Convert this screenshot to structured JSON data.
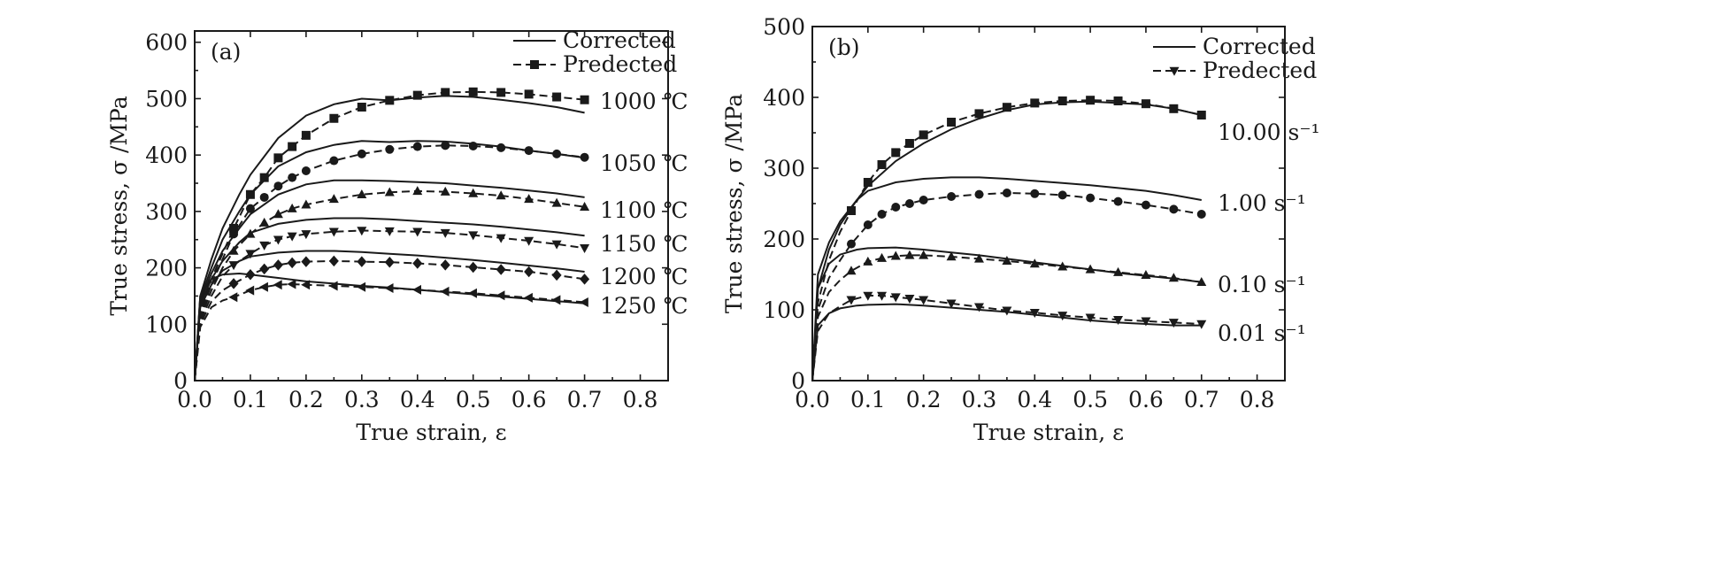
{
  "chart_data": [
    {
      "type": "line",
      "panel_label": "(a)",
      "xlabel": "True strain, ε",
      "ylabel": "True stress, σ /MPa",
      "xlim": [
        0.0,
        0.85
      ],
      "ylim": [
        0,
        620
      ],
      "xticks": [
        "0.0",
        "0.1",
        "0.2",
        "0.3",
        "0.4",
        "0.5",
        "0.6",
        "0.7",
        "0.8"
      ],
      "yticks": [
        "0",
        "100",
        "200",
        "300",
        "400",
        "500",
        "600"
      ],
      "legend": {
        "placement": "top-right",
        "entries": [
          "Corrected",
          "Predected"
        ]
      },
      "marker_shapes": [
        "square",
        "circle",
        "triangle-up",
        "triangle-down",
        "diamond",
        "triangle-left"
      ],
      "series": [
        {
          "name": "1000 ℃",
          "corrected": {
            "x": [
              0,
              0.01,
              0.03,
              0.05,
              0.08,
              0.1,
              0.15,
              0.2,
              0.25,
              0.3,
              0.35,
              0.4,
              0.45,
              0.5,
              0.55,
              0.6,
              0.65,
              0.7
            ],
            "y": [
              0,
              150,
              215,
              270,
              330,
              365,
              430,
              470,
              490,
              500,
              497,
              502,
              505,
              503,
              498,
              492,
              485,
              475
            ]
          },
          "predicted": {
            "x": [
              0,
              0.01,
              0.03,
              0.05,
              0.07,
              0.1,
              0.125,
              0.15,
              0.175,
              0.2,
              0.25,
              0.3,
              0.35,
              0.4,
              0.45,
              0.5,
              0.55,
              0.6,
              0.65,
              0.7
            ],
            "y": [
              0,
              120,
              180,
              225,
              270,
              330,
              360,
              395,
              415,
              435,
              465,
              485,
              497,
              506,
              511,
              512,
              511,
              508,
              503,
              498
            ]
          }
        },
        {
          "name": "1050 ℃",
          "corrected": {
            "x": [
              0,
              0.01,
              0.03,
              0.05,
              0.08,
              0.1,
              0.15,
              0.2,
              0.25,
              0.3,
              0.35,
              0.4,
              0.45,
              0.5,
              0.55,
              0.6,
              0.65,
              0.7
            ],
            "y": [
              0,
              145,
              200,
              250,
              300,
              330,
              380,
              405,
              418,
              425,
              423,
              425,
              424,
              420,
              415,
              408,
              402,
              395
            ]
          },
          "predicted": {
            "x": [
              0,
              0.01,
              0.03,
              0.05,
              0.07,
              0.1,
              0.125,
              0.15,
              0.175,
              0.2,
              0.25,
              0.3,
              0.35,
              0.4,
              0.45,
              0.5,
              0.55,
              0.6,
              0.65,
              0.7
            ],
            "y": [
              0,
              115,
              170,
              215,
              260,
              305,
              325,
              345,
              360,
              372,
              390,
              402,
              410,
              415,
              417,
              416,
              413,
              408,
              402,
              396
            ]
          }
        },
        {
          "name": "1100 ℃",
          "corrected": {
            "x": [
              0,
              0.01,
              0.03,
              0.05,
              0.08,
              0.1,
              0.15,
              0.2,
              0.25,
              0.3,
              0.35,
              0.4,
              0.45,
              0.5,
              0.55,
              0.6,
              0.65,
              0.7
            ],
            "y": [
              0,
              140,
              190,
              230,
              270,
              295,
              330,
              348,
              355,
              355,
              354,
              352,
              350,
              346,
              342,
              337,
              332,
              325
            ]
          },
          "predicted": {
            "x": [
              0,
              0.01,
              0.03,
              0.05,
              0.07,
              0.1,
              0.125,
              0.15,
              0.175,
              0.2,
              0.25,
              0.3,
              0.35,
              0.4,
              0.45,
              0.5,
              0.55,
              0.6,
              0.65,
              0.7
            ],
            "y": [
              0,
              110,
              160,
              200,
              230,
              260,
              280,
              295,
              305,
              312,
              322,
              330,
              334,
              336,
              335,
              332,
              328,
              322,
              315,
              308
            ]
          }
        },
        {
          "name": "1150 ℃",
          "corrected": {
            "x": [
              0,
              0.01,
              0.03,
              0.05,
              0.08,
              0.1,
              0.15,
              0.2,
              0.25,
              0.3,
              0.35,
              0.4,
              0.45,
              0.5,
              0.55,
              0.6,
              0.65,
              0.7
            ],
            "y": [
              0,
              135,
              180,
              212,
              245,
              262,
              278,
              285,
              288,
              288,
              286,
              283,
              280,
              277,
              273,
              268,
              263,
              257
            ]
          },
          "predicted": {
            "x": [
              0,
              0.01,
              0.03,
              0.05,
              0.07,
              0.1,
              0.125,
              0.15,
              0.175,
              0.2,
              0.25,
              0.3,
              0.35,
              0.4,
              0.45,
              0.5,
              0.55,
              0.6,
              0.65,
              0.7
            ],
            "y": [
              0,
              105,
              150,
              185,
              205,
              225,
              240,
              250,
              256,
              260,
              264,
              266,
              265,
              264,
              262,
              258,
              253,
              248,
              242,
              235
            ]
          }
        },
        {
          "name": "1200 ℃",
          "corrected": {
            "x": [
              0,
              0.01,
              0.03,
              0.05,
              0.08,
              0.1,
              0.15,
              0.2,
              0.25,
              0.3,
              0.35,
              0.4,
              0.45,
              0.5,
              0.55,
              0.6,
              0.65,
              0.7
            ],
            "y": [
              0,
              130,
              170,
              195,
              212,
              220,
              227,
              230,
              230,
              228,
              225,
              222,
              218,
              214,
              209,
              204,
              199,
              193
            ]
          },
          "predicted": {
            "x": [
              0,
              0.01,
              0.03,
              0.05,
              0.07,
              0.1,
              0.125,
              0.15,
              0.175,
              0.2,
              0.25,
              0.3,
              0.35,
              0.4,
              0.45,
              0.5,
              0.55,
              0.6,
              0.65,
              0.7
            ],
            "y": [
              0,
              100,
              140,
              160,
              172,
              188,
              198,
              205,
              209,
              211,
              212,
              211,
              210,
              208,
              205,
              201,
              197,
              193,
              187,
              180
            ]
          }
        },
        {
          "name": "1250 ℃",
          "corrected": {
            "x": [
              0,
              0.01,
              0.03,
              0.05,
              0.08,
              0.1,
              0.15,
              0.2,
              0.25,
              0.3,
              0.35,
              0.4,
              0.45,
              0.5,
              0.55,
              0.6,
              0.65,
              0.7
            ],
            "y": [
              0,
              150,
              180,
              188,
              190,
              188,
              182,
              176,
              172,
              168,
              165,
              161,
              157,
              153,
              149,
              145,
              141,
              137
            ]
          },
          "predicted": {
            "x": [
              0,
              0.01,
              0.03,
              0.05,
              0.07,
              0.1,
              0.125,
              0.15,
              0.175,
              0.2,
              0.25,
              0.3,
              0.35,
              0.4,
              0.45,
              0.5,
              0.55,
              0.6,
              0.65,
              0.7
            ],
            "y": [
              0,
              95,
              130,
              142,
              148,
              160,
              166,
              170,
              171,
              170,
              168,
              166,
              164,
              161,
              158,
              155,
              151,
              147,
              143,
              139
            ]
          }
        }
      ]
    },
    {
      "type": "line",
      "panel_label": "(b)",
      "xlabel": "True strain, ε",
      "ylabel": "True stress, σ /MPa",
      "xlim": [
        0.0,
        0.85
      ],
      "ylim": [
        0,
        500
      ],
      "xticks": [
        "0.0",
        "0.1",
        "0.2",
        "0.3",
        "0.4",
        "0.5",
        "0.6",
        "0.7",
        "0.8"
      ],
      "yticks": [
        "0",
        "100",
        "200",
        "300",
        "400",
        "500"
      ],
      "legend": {
        "placement": "top-right",
        "entries": [
          "Corrected",
          "Predected"
        ]
      },
      "marker_shapes": [
        "square",
        "circle",
        "triangle-up",
        "triangle-down"
      ],
      "series": [
        {
          "name": "10.00 s⁻¹",
          "corrected": {
            "x": [
              0,
              0.01,
              0.03,
              0.05,
              0.08,
              0.1,
              0.15,
              0.2,
              0.25,
              0.3,
              0.35,
              0.4,
              0.45,
              0.5,
              0.55,
              0.6,
              0.65,
              0.7
            ],
            "y": [
              0,
              130,
              185,
              220,
              255,
              275,
              310,
              335,
              355,
              370,
              382,
              390,
              393,
              394,
              392,
              390,
              384,
              375
            ]
          },
          "predicted": {
            "x": [
              0,
              0.01,
              0.03,
              0.05,
              0.07,
              0.1,
              0.125,
              0.15,
              0.175,
              0.2,
              0.25,
              0.3,
              0.35,
              0.4,
              0.45,
              0.5,
              0.55,
              0.6,
              0.65,
              0.7
            ],
            "y": [
              0,
              110,
              170,
              210,
              240,
              280,
              305,
              322,
              335,
              347,
              365,
              377,
              386,
              392,
              395,
              396,
              395,
              391,
              384,
              375
            ]
          }
        },
        {
          "name": "1.00 s⁻¹",
          "corrected": {
            "x": [
              0,
              0.01,
              0.03,
              0.05,
              0.08,
              0.1,
              0.15,
              0.2,
              0.25,
              0.3,
              0.35,
              0.4,
              0.45,
              0.5,
              0.55,
              0.6,
              0.65,
              0.7
            ],
            "y": [
              0,
              150,
              195,
              225,
              255,
              268,
              280,
              285,
              287,
              287,
              285,
              282,
              279,
              276,
              272,
              268,
              262,
              255
            ]
          },
          "predicted": {
            "x": [
              0,
              0.01,
              0.03,
              0.05,
              0.07,
              0.1,
              0.125,
              0.15,
              0.175,
              0.2,
              0.25,
              0.3,
              0.35,
              0.4,
              0.45,
              0.5,
              0.55,
              0.6,
              0.65,
              0.7
            ],
            "y": [
              0,
              100,
              145,
              170,
              193,
              220,
              235,
              245,
              250,
              255,
              260,
              263,
              265,
              264,
              262,
              258,
              253,
              248,
              242,
              235
            ]
          }
        },
        {
          "name": "0.10 s⁻¹",
          "corrected": {
            "x": [
              0,
              0.01,
              0.03,
              0.05,
              0.08,
              0.1,
              0.15,
              0.2,
              0.25,
              0.3,
              0.35,
              0.4,
              0.45,
              0.5,
              0.55,
              0.6,
              0.65,
              0.7
            ],
            "y": [
              0,
              130,
              165,
              178,
              185,
              187,
              188,
              185,
              181,
              177,
              172,
              167,
              162,
              157,
              152,
              148,
              144,
              139
            ]
          },
          "predicted": {
            "x": [
              0,
              0.01,
              0.03,
              0.05,
              0.07,
              0.1,
              0.125,
              0.15,
              0.175,
              0.2,
              0.25,
              0.3,
              0.35,
              0.4,
              0.45,
              0.5,
              0.55,
              0.6,
              0.65,
              0.7
            ],
            "y": [
              0,
              90,
              125,
              142,
              155,
              168,
              173,
              176,
              177,
              177,
              175,
              172,
              169,
              165,
              161,
              157,
              153,
              149,
              145,
              139
            ]
          }
        },
        {
          "name": "0.01 s⁻¹",
          "corrected": {
            "x": [
              0,
              0.01,
              0.03,
              0.05,
              0.08,
              0.1,
              0.15,
              0.2,
              0.25,
              0.3,
              0.35,
              0.4,
              0.45,
              0.5,
              0.55,
              0.6,
              0.65,
              0.7
            ],
            "y": [
              0,
              78,
              95,
              102,
              106,
              107,
              108,
              106,
              103,
              100,
              97,
              93,
              89,
              85,
              82,
              80,
              78,
              78
            ]
          },
          "predicted": {
            "x": [
              0,
              0.01,
              0.03,
              0.05,
              0.07,
              0.1,
              0.125,
              0.15,
              0.175,
              0.2,
              0.25,
              0.3,
              0.35,
              0.4,
              0.45,
              0.5,
              0.55,
              0.6,
              0.65,
              0.7
            ],
            "y": [
              0,
              70,
              95,
              105,
              114,
              120,
              120,
              118,
              116,
              114,
              109,
              104,
              99,
              96,
              92,
              89,
              86,
              84,
              82,
              80
            ]
          }
        }
      ]
    }
  ]
}
